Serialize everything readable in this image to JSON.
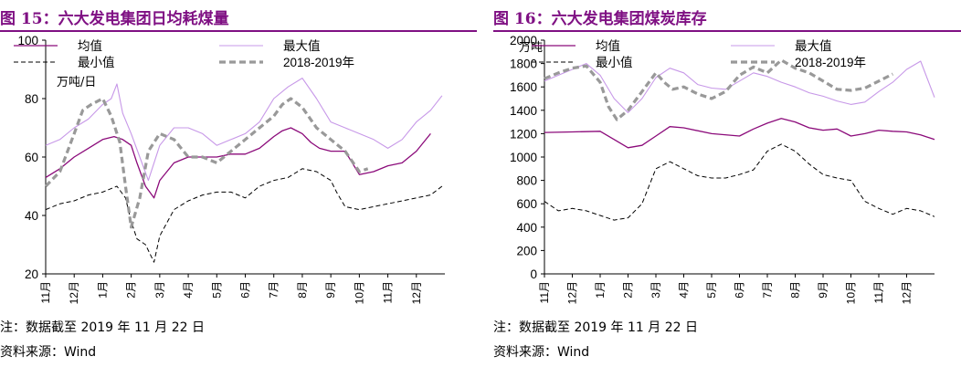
{
  "colors": {
    "accent": "#7f1083",
    "mean": "#8b0a7a",
    "max": "#c798e8",
    "min": "#000000",
    "year": "#999999"
  },
  "figures": [
    {
      "title": "图 15：六大发电集团日均耗煤量",
      "unit": "万吨/日",
      "note": "注：数据截至 2019 年 11 月 22 日",
      "source": "资料来源：Wind",
      "legend": [
        "均值",
        "最大值",
        "最小值",
        "2018-2019年"
      ],
      "chart_data": {
        "type": "line",
        "ylim": [
          20,
          100
        ],
        "yticks": [
          20,
          40,
          60,
          80,
          100
        ],
        "x_tick_labels": [
          "11月",
          "12月",
          "1月",
          "2月",
          "3月",
          "4月",
          "5月",
          "6月",
          "7月",
          "8月",
          "9月",
          "10月",
          "11月",
          "12月"
        ],
        "x_range_months": [
          0,
          14
        ],
        "grid": false,
        "legend_position": "top",
        "series": [
          {
            "name": "均值",
            "x": [
              0,
              0.5,
              1,
              1.5,
              2,
              2.4,
              2.7,
              3,
              3.2,
              3.5,
              3.8,
              4,
              4.5,
              5,
              5.5,
              6,
              6.5,
              7,
              7.5,
              8,
              8.3,
              8.6,
              9,
              9.3,
              9.6,
              10,
              10.5,
              11,
              11.5,
              12,
              12.5,
              13,
              13.5
            ],
            "y": [
              53,
              56,
              60,
              63,
              66,
              67,
              66,
              64,
              58,
              50,
              46,
              52,
              58,
              60,
              60,
              60,
              61,
              61,
              63,
              67,
              69,
              70,
              68,
              65,
              63,
              62,
              62,
              54,
              55,
              57,
              58,
              62,
              68
            ]
          },
          {
            "name": "最大值",
            "x": [
              0,
              0.5,
              1,
              1.5,
              2,
              2.3,
              2.5,
              2.7,
              3,
              3.3,
              3.6,
              4,
              4.5,
              5,
              5.5,
              6,
              6.5,
              7,
              7.5,
              8,
              8.5,
              9,
              9.5,
              10,
              10.5,
              11,
              11.5,
              12,
              12.5,
              13,
              13.5,
              13.9
            ],
            "y": [
              64,
              66,
              70,
              73,
              78,
              80,
              85,
              75,
              68,
              60,
              52,
              64,
              70,
              70,
              68,
              64,
              66,
              68,
              72,
              80,
              84,
              87,
              80,
              72,
              70,
              68,
              66,
              63,
              66,
              72,
              76,
              81
            ]
          },
          {
            "name": "最小值",
            "x": [
              0,
              0.5,
              1,
              1.5,
              2,
              2.5,
              2.8,
              3,
              3.2,
              3.5,
              3.8,
              4,
              4.5,
              5,
              5.5,
              6,
              6.5,
              7,
              7.5,
              8,
              8.5,
              9,
              9.5,
              10,
              10.2,
              10.5,
              11,
              11.5,
              12,
              12.5,
              13,
              13.5,
              13.9
            ],
            "y": [
              42,
              44,
              45,
              47,
              48,
              50,
              46,
              38,
              32,
              30,
              24,
              33,
              42,
              45,
              47,
              48,
              48,
              46,
              50,
              52,
              53,
              56,
              55,
              52,
              48,
              43,
              42,
              43,
              44,
              45,
              46,
              47,
              50
            ]
          },
          {
            "name": "2018-2019年",
            "x": [
              0,
              0.5,
              1,
              1.3,
              1.6,
              2,
              2.3,
              2.6,
              2.8,
              3,
              3.3,
              3.6,
              4,
              4.5,
              5,
              5.5,
              6,
              6.5,
              7,
              7.5,
              8,
              8.3,
              8.6,
              9,
              9.5,
              10,
              10.5,
              11,
              11.3
            ],
            "y": [
              50,
              55,
              68,
              76,
              78,
              80,
              74,
              65,
              50,
              36,
              46,
              62,
              68,
              66,
              60,
              60,
              58,
              62,
              66,
              70,
              74,
              78,
              80,
              77,
              70,
              66,
              62,
              55,
              56
            ]
          }
        ]
      }
    },
    {
      "title": "图 16：六大发电集团煤炭库存",
      "unit": "万吨",
      "note": "注：数据截至 2019 年 11 月 22 日",
      "source": "资料来源：Wind",
      "legend": [
        "均值",
        "最大值",
        "最小值",
        "2018-2019年"
      ],
      "chart_data": {
        "type": "line",
        "ylim": [
          0,
          2000
        ],
        "yticks": [
          0,
          200,
          400,
          600,
          800,
          1000,
          1200,
          1400,
          1600,
          1800,
          2000
        ],
        "x_tick_labels": [
          "11月",
          "12月",
          "1月",
          "2月",
          "3月",
          "4月",
          "5月",
          "6月",
          "7月",
          "8月",
          "9月",
          "10月",
          "11月",
          "12月"
        ],
        "x_range_months": [
          0,
          14
        ],
        "grid": false,
        "legend_position": "top",
        "series": [
          {
            "name": "均值",
            "x": [
              0,
              1,
              2,
              2.5,
              3,
              3.5,
              4,
              4.5,
              5,
              6,
              7,
              7.5,
              8,
              8.5,
              9,
              9.5,
              10,
              10.5,
              11,
              11.5,
              12,
              12.5,
              13,
              13.5,
              14
            ],
            "y": [
              1210,
              1215,
              1220,
              1150,
              1080,
              1100,
              1180,
              1260,
              1250,
              1200,
              1180,
              1240,
              1290,
              1330,
              1300,
              1250,
              1230,
              1240,
              1180,
              1200,
              1230,
              1220,
              1215,
              1190,
              1150
            ]
          },
          {
            "name": "最大值",
            "x": [
              0,
              0.5,
              1,
              1.5,
              2,
              2.5,
              3,
              3.5,
              4,
              4.5,
              5,
              5.5,
              6,
              6.5,
              7,
              7.5,
              8,
              8.5,
              9,
              9.5,
              10,
              10.5,
              11,
              11.5,
              12,
              12.5,
              13,
              13.5,
              14
            ],
            "y": [
              1650,
              1700,
              1750,
              1800,
              1700,
              1500,
              1380,
              1500,
              1680,
              1760,
              1720,
              1620,
              1590,
              1580,
              1650,
              1720,
              1690,
              1640,
              1600,
              1550,
              1520,
              1480,
              1450,
              1470,
              1560,
              1640,
              1750,
              1820,
              1510
            ]
          },
          {
            "name": "最小值",
            "x": [
              0,
              0.5,
              1,
              1.5,
              2,
              2.5,
              3,
              3.5,
              4,
              4.5,
              5,
              5.5,
              6,
              6.5,
              7,
              7.5,
              8,
              8.5,
              9,
              9.5,
              10,
              10.5,
              11,
              11.5,
              12,
              12.5,
              13,
              13.5,
              14
            ],
            "y": [
              620,
              540,
              560,
              540,
              500,
              460,
              480,
              600,
              900,
              960,
              900,
              840,
              820,
              820,
              850,
              890,
              1050,
              1110,
              1050,
              940,
              850,
              820,
              800,
              620,
              560,
              510,
              560,
              540,
              490
            ]
          },
          {
            "name": "2018-2019年",
            "x": [
              0,
              0.5,
              1,
              1.5,
              2,
              2.3,
              2.6,
              3,
              3.5,
              4,
              4.3,
              4.6,
              5,
              5.5,
              6,
              6.5,
              7,
              7.5,
              8,
              8.5,
              9,
              9.5,
              10,
              10.5,
              11,
              11.5,
              12,
              12.5
            ],
            "y": [
              1670,
              1720,
              1760,
              1780,
              1640,
              1430,
              1320,
              1400,
              1560,
              1720,
              1640,
              1580,
              1600,
              1540,
              1500,
              1560,
              1700,
              1770,
              1720,
              1830,
              1760,
              1720,
              1650,
              1580,
              1570,
              1590,
              1650,
              1710
            ]
          }
        ]
      }
    }
  ]
}
